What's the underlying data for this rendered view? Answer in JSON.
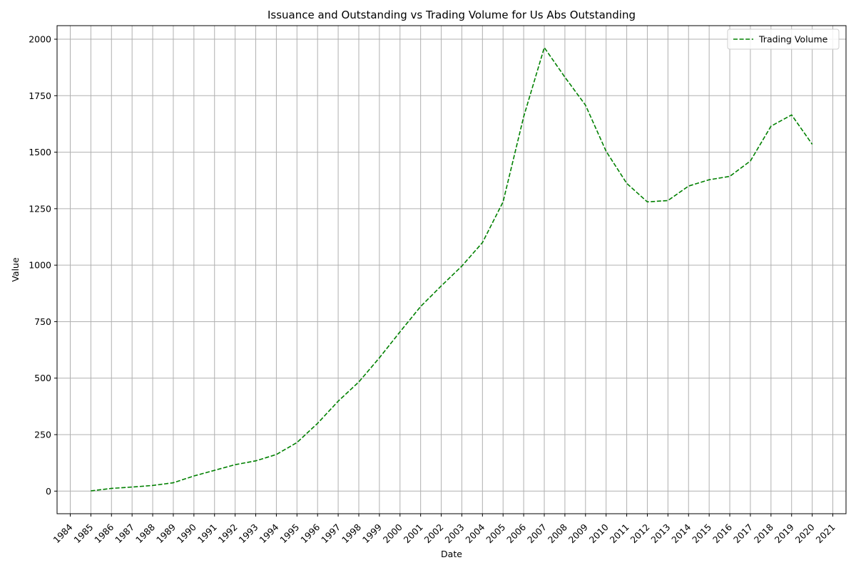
{
  "chart_data": {
    "type": "line",
    "title": "Issuance and Outstanding vs Trading Volume for Us Abs Outstanding",
    "xlabel": "Date",
    "ylabel": "Value",
    "x_ticks": [
      "1984",
      "1985",
      "1986",
      "1987",
      "1988",
      "1989",
      "1990",
      "1991",
      "1992",
      "1993",
      "1994",
      "1995",
      "1996",
      "1997",
      "1998",
      "1999",
      "2000",
      "2001",
      "2002",
      "2003",
      "2004",
      "2005",
      "2006",
      "2007",
      "2008",
      "2009",
      "2010",
      "2011",
      "2012",
      "2013",
      "2014",
      "2015",
      "2016",
      "2017",
      "2018",
      "2019",
      "2020",
      "2021"
    ],
    "xlim": [
      "1984",
      "2021"
    ],
    "y_ticks": [
      0,
      250,
      500,
      750,
      1000,
      1250,
      1500,
      1750,
      2000
    ],
    "y_tick_labels": [
      "0",
      "250",
      "500",
      "750",
      "1000",
      "1250",
      "1500",
      "1750",
      "2000"
    ],
    "ylim": [
      -100,
      2060
    ],
    "grid": true,
    "legend": "top-right",
    "series": [
      {
        "name": "Trading Volume",
        "color": "#008000",
        "style": "dashed",
        "x": [
          "1985",
          "1986",
          "1987",
          "1988",
          "1989",
          "1990",
          "1991",
          "1992",
          "1993",
          "1994",
          "1995",
          "1996",
          "1997",
          "1998",
          "1999",
          "2000",
          "2001",
          "2002",
          "2003",
          "2004",
          "2005",
          "2006",
          "2007",
          "2008",
          "2009",
          "2010",
          "2011",
          "2012",
          "2013",
          "2014",
          "2015",
          "2016",
          "2017",
          "2018",
          "2019",
          "2020"
        ],
        "values": [
          1,
          12,
          18,
          25,
          37,
          67,
          92,
          117,
          134,
          162,
          215,
          300,
          398,
          483,
          590,
          705,
          817,
          908,
          996,
          1100,
          1280,
          1657,
          1963,
          1832,
          1708,
          1504,
          1362,
          1280,
          1286,
          1350,
          1378,
          1393,
          1461,
          1615,
          1665,
          1535
        ]
      }
    ]
  }
}
